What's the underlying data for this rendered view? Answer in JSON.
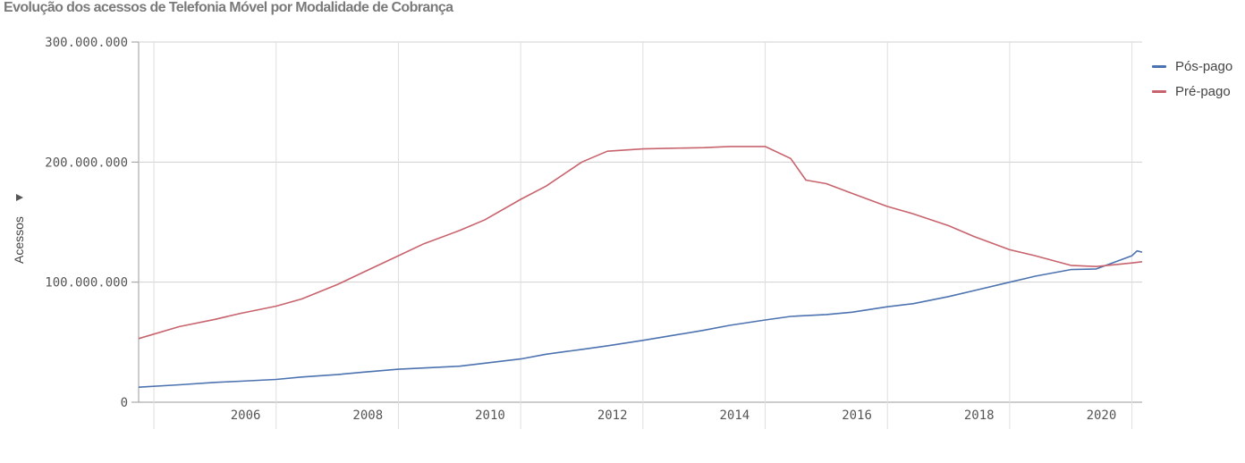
{
  "chart_data": {
    "type": "line",
    "title": "Evolução dos acessos de Telefonia Móvel por Modalidade de Cobrança",
    "xlabel": "",
    "ylabel": "Acessos",
    "ylim": [
      0,
      300000000
    ],
    "xlim": [
      "2004-10",
      "2021-03"
    ],
    "y_ticks": [
      {
        "value": 0,
        "label": "0"
      },
      {
        "value": 100000000,
        "label": "100.000.000"
      },
      {
        "value": 200000000,
        "label": "200.000.000"
      },
      {
        "value": 300000000,
        "label": "300.000.000"
      }
    ],
    "x_ticks": [
      "2006",
      "2008",
      "2010",
      "2012",
      "2014",
      "2016",
      "2018",
      "2020"
    ],
    "grid": true,
    "legend_position": "top-right",
    "series": [
      {
        "name": "Pós-pago",
        "color": "#4c72b0",
        "points": [
          [
            "2004-10",
            12500000
          ],
          [
            "2005-06",
            14500000
          ],
          [
            "2006-01",
            16500000
          ],
          [
            "2006-06",
            17500000
          ],
          [
            "2007-01",
            19000000
          ],
          [
            "2007-06",
            21000000
          ],
          [
            "2008-01",
            23000000
          ],
          [
            "2008-06",
            25000000
          ],
          [
            "2009-01",
            27500000
          ],
          [
            "2009-06",
            28500000
          ],
          [
            "2010-01",
            30000000
          ],
          [
            "2010-06",
            32500000
          ],
          [
            "2011-01",
            36000000
          ],
          [
            "2011-06",
            40000000
          ],
          [
            "2012-01",
            44000000
          ],
          [
            "2012-06",
            47000000
          ],
          [
            "2013-01",
            51500000
          ],
          [
            "2013-06",
            55000000
          ],
          [
            "2014-01",
            60000000
          ],
          [
            "2014-06",
            64000000
          ],
          [
            "2015-01",
            68500000
          ],
          [
            "2015-06",
            71500000
          ],
          [
            "2016-01",
            73000000
          ],
          [
            "2016-06",
            75000000
          ],
          [
            "2017-01",
            79500000
          ],
          [
            "2017-06",
            82000000
          ],
          [
            "2018-01",
            88000000
          ],
          [
            "2018-06",
            93000000
          ],
          [
            "2019-01",
            100000000
          ],
          [
            "2019-06",
            105000000
          ],
          [
            "2020-01",
            110500000
          ],
          [
            "2020-06",
            111000000
          ],
          [
            "2021-01",
            122000000
          ],
          [
            "2021-02",
            126000000
          ],
          [
            "2021-03",
            125000000
          ]
        ]
      },
      {
        "name": "Pré-pago",
        "color": "#c8636d",
        "points": [
          [
            "2004-10",
            53000000
          ],
          [
            "2005-06",
            63000000
          ],
          [
            "2006-01",
            69000000
          ],
          [
            "2006-06",
            74000000
          ],
          [
            "2007-01",
            80000000
          ],
          [
            "2007-06",
            86000000
          ],
          [
            "2008-01",
            98000000
          ],
          [
            "2008-06",
            108000000
          ],
          [
            "2009-01",
            122000000
          ],
          [
            "2009-06",
            132000000
          ],
          [
            "2010-01",
            143000000
          ],
          [
            "2010-06",
            152000000
          ],
          [
            "2011-01",
            169000000
          ],
          [
            "2011-06",
            180000000
          ],
          [
            "2012-01",
            200000000
          ],
          [
            "2012-06",
            209000000
          ],
          [
            "2013-01",
            211000000
          ],
          [
            "2013-06",
            211500000
          ],
          [
            "2014-01",
            212000000
          ],
          [
            "2014-06",
            213000000
          ],
          [
            "2015-01",
            213000000
          ],
          [
            "2015-06",
            203000000
          ],
          [
            "2015-09",
            185000000
          ],
          [
            "2016-01",
            182000000
          ],
          [
            "2016-06",
            174000000
          ],
          [
            "2017-01",
            163000000
          ],
          [
            "2017-06",
            157000000
          ],
          [
            "2018-01",
            147000000
          ],
          [
            "2018-06",
            138000000
          ],
          [
            "2019-01",
            127000000
          ],
          [
            "2019-06",
            122000000
          ],
          [
            "2020-01",
            114000000
          ],
          [
            "2020-06",
            113000000
          ],
          [
            "2021-01",
            116000000
          ],
          [
            "2021-03",
            117000000
          ]
        ]
      }
    ]
  }
}
